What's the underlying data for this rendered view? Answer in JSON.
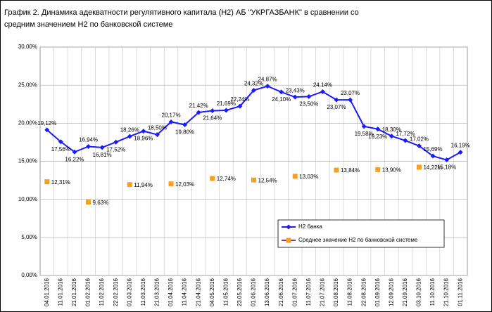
{
  "chart_data": {
    "type": "line",
    "title": [
      "График 2. Динамика адекватности регулятивного капитала (Н2) АБ \"УКРГАЗБАНК\" в сравнении со",
      "средним значением Н2 по банковской системе"
    ],
    "categories": [
      "04.01.2016",
      "11.01.2016",
      "21.01.2016",
      "01.02.2016",
      "11.02.2016",
      "22.02.2016",
      "01.03.2016",
      "11.03.2016",
      "21.03.2016",
      "01.04.2016",
      "11.04.2016",
      "21.04.2016",
      "04.05.2016",
      "11.05.2016",
      "23.05.2016",
      "01.06.2016",
      "13.06.2016",
      "21.06.2016",
      "01.07.2016",
      "11.07.2016",
      "21.07.2016",
      "01.08.2016",
      "11.08.2016",
      "22.08.2016",
      "01.09.2016",
      "12.09.2016",
      "21.09.2016",
      "03.10.2016",
      "11.10.2016",
      "21.10.2016",
      "01.11.2016"
    ],
    "series": [
      {
        "name": "Н2 банка",
        "color": "#1a1aff",
        "values": [
          19.12,
          17.56,
          16.22,
          16.94,
          16.81,
          17.52,
          18.26,
          18.96,
          18.5,
          20.17,
          19.8,
          21.42,
          21.64,
          21.69,
          22.24,
          24.32,
          24.87,
          24.1,
          23.43,
          23.5,
          24.14,
          23.07,
          23.07,
          19.58,
          19.23,
          18.3,
          17.72,
          17.02,
          15.69,
          15.18,
          16.19
        ],
        "value_labels": [
          "19,12%",
          "17,56%",
          "16,22%",
          "16,94%",
          "16,81%",
          "17,52%",
          "18,26%",
          "18,96%",
          "18,50%",
          "20,17%",
          "19,80%",
          "21,42%",
          "21,64%",
          "21,69%",
          "22,24%",
          "24,32%",
          "24,87%",
          "24,10%",
          "23,43%",
          "23,50%",
          "24,14%",
          "23,07%",
          "23,07%",
          "19,58%",
          "19,23%",
          "18,30%",
          "17,72%",
          "17,02%",
          "15,69%",
          "15,18%",
          "16,19%"
        ]
      },
      {
        "name": "Среднее значение Н2 по банковской системе",
        "color": "#f5a020",
        "line_color": "#993366",
        "values": [
          12.31,
          null,
          null,
          9.63,
          null,
          null,
          11.94,
          null,
          null,
          12.03,
          null,
          null,
          12.74,
          null,
          null,
          12.54,
          null,
          null,
          13.03,
          null,
          null,
          13.84,
          null,
          null,
          13.9,
          null,
          null,
          14.22,
          null,
          null,
          null
        ],
        "value_labels": [
          "12,31%",
          null,
          null,
          "9,63%",
          null,
          null,
          "11,94%",
          null,
          null,
          "12,03%",
          null,
          null,
          "12,74%",
          null,
          null,
          "12,54%",
          null,
          null,
          "13,03%",
          null,
          null,
          "13,84%",
          null,
          null,
          "13,90%",
          null,
          null,
          "14,22%",
          null,
          null,
          null
        ]
      }
    ],
    "ylim": [
      0,
      30
    ],
    "yticks": [
      {
        "value": 0,
        "label": "0,00%"
      },
      {
        "value": 5,
        "label": "5,00%"
      },
      {
        "value": 10,
        "label": "10,00%"
      },
      {
        "value": 15,
        "label": "15,00%"
      },
      {
        "value": 20,
        "label": "20,00%"
      },
      {
        "value": 25,
        "label": "25,00%"
      },
      {
        "value": 30,
        "label": "30,00%"
      }
    ],
    "grid": true
  }
}
